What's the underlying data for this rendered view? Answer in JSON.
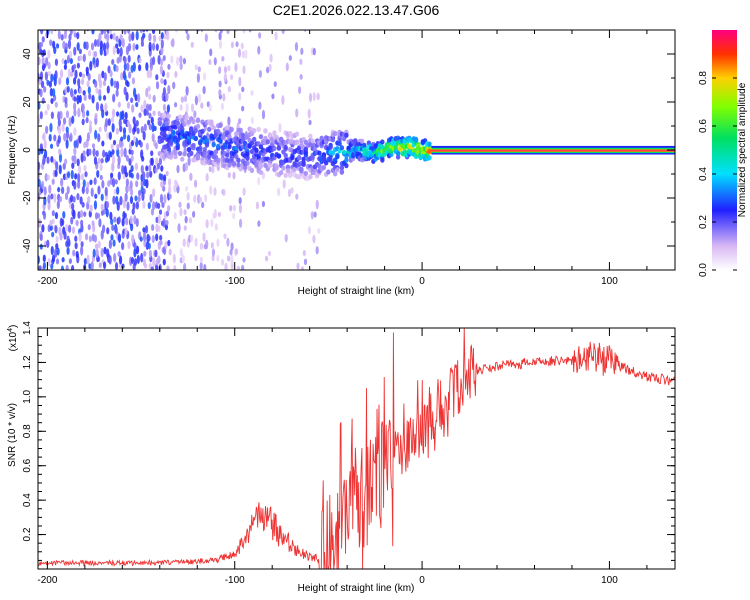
{
  "title": "C2E1.2026.022.13.47.G06",
  "chart_data": [
    {
      "type": "heatmap",
      "title": "C2E1.2026.022.13.47.G06",
      "xlabel": "Height of straight line (km)",
      "ylabel": "Frequency (Hz)",
      "xlim": [
        -205,
        135
      ],
      "ylim": [
        -50,
        50
      ],
      "x_ticks": [
        "-200",
        "-100",
        "0",
        "100"
      ],
      "y_ticks": [
        "40",
        "20",
        "0",
        "-20",
        "-40"
      ],
      "colorbar": {
        "label": "Normalized spectral amplitude",
        "range": [
          0.0,
          1.0
        ],
        "ticks": [
          "0.0",
          "0.2",
          "0.4",
          "0.6",
          "0.8"
        ]
      },
      "ridge": {
        "x": [
          -135,
          -120,
          -100,
          -80,
          -60,
          -45,
          -35,
          -25,
          -15,
          -5,
          0,
          5,
          130
        ],
        "freq": [
          6,
          4,
          1,
          -1,
          -3,
          -1,
          0,
          -1,
          1,
          1,
          0,
          0,
          0
        ],
        "amplitude": [
          0.35,
          0.4,
          0.35,
          0.3,
          0.3,
          0.45,
          0.55,
          0.65,
          0.85,
          0.9,
          0.95,
          1.0,
          1.0
        ]
      }
    },
    {
      "type": "line",
      "xlabel": "Height of straight line (km)",
      "ylabel": "SNR (10 * v/v)",
      "scale_label": "(x10",
      "scale_exp": "4",
      "xlim": [
        -205,
        135
      ],
      "ylim": [
        0.0,
        1.4
      ],
      "x_ticks": [
        "-200",
        "-100",
        "0",
        "100"
      ],
      "y_ticks": [
        "0.2",
        "0.4",
        "0.6",
        "0.8",
        "1.0",
        "1.2",
        "1.4"
      ],
      "series": [
        {
          "name": "SNR",
          "color": "#ee3333",
          "x": [
            -205,
            -180,
            -150,
            -120,
            -110,
            -100,
            -95,
            -90,
            -85,
            -80,
            -75,
            -70,
            -65,
            -60,
            -55,
            -50,
            -45,
            -40,
            -35,
            -30,
            -25,
            -20,
            -15,
            -10,
            -5,
            0,
            5,
            10,
            15,
            20,
            25,
            30,
            35,
            40,
            50,
            60,
            70,
            80,
            90,
            95,
            100,
            110,
            120,
            130,
            135
          ],
          "y": [
            0.02,
            0.02,
            0.02,
            0.03,
            0.04,
            0.08,
            0.14,
            0.22,
            0.25,
            0.22,
            0.16,
            0.12,
            0.08,
            0.06,
            0.05,
            0.08,
            0.18,
            0.32,
            0.4,
            0.4,
            0.45,
            0.55,
            0.62,
            0.68,
            0.74,
            0.8,
            0.86,
            0.93,
            1.0,
            1.06,
            1.12,
            1.15,
            1.17,
            1.18,
            1.19,
            1.2,
            1.21,
            1.21,
            1.22,
            1.22,
            1.21,
            1.16,
            1.12,
            1.1,
            1.09
          ]
        }
      ]
    }
  ]
}
